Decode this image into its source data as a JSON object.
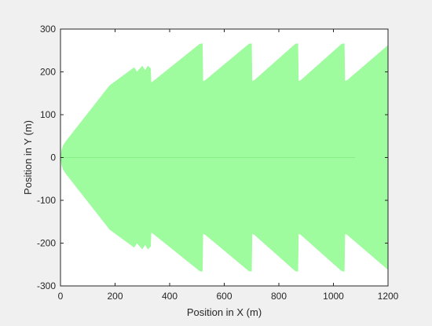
{
  "chart_data": {
    "type": "area",
    "title": "",
    "xlabel": "Position in X (m)",
    "ylabel": "Position in Y (m)",
    "xlim": [
      0,
      1200
    ],
    "ylim": [
      -300,
      300
    ],
    "xticks": [
      0,
      200,
      400,
      600,
      800,
      1000,
      1200
    ],
    "yticks": [
      -300,
      -200,
      -100,
      0,
      100,
      200,
      300
    ],
    "xtick_labels": [
      "0",
      "200",
      "400",
      "600",
      "800",
      "1000",
      "1200"
    ],
    "ytick_labels": [
      "-300",
      "-200",
      "-100",
      "0",
      "100",
      "200",
      "300"
    ],
    "grid": false,
    "legend": "none",
    "fill_color": "#9efb9e",
    "center_line_color": "#88ee88",
    "series": [
      {
        "x": [
          0,
          5,
          10,
          20,
          180,
          270,
          280,
          300,
          310,
          320,
          330,
          332,
          340,
          510,
          520,
          522,
          530,
          690,
          700,
          702,
          710,
          860,
          870,
          872,
          880,
          1030,
          1040,
          1042,
          1050,
          1200
        ],
        "y": [
          0,
          18,
          28,
          38,
          168,
          210,
          200,
          214,
          203,
          214,
          208,
          175,
          178,
          265,
          266,
          178,
          180,
          265,
          266,
          178,
          180,
          265,
          266,
          178,
          180,
          265,
          266,
          178,
          180,
          262
        ]
      },
      {
        "x": [
          0,
          5,
          10,
          20,
          180,
          270,
          280,
          300,
          310,
          320,
          330,
          332,
          340,
          510,
          520,
          522,
          530,
          690,
          700,
          702,
          710,
          860,
          870,
          872,
          880,
          1030,
          1040,
          1042,
          1050,
          1200
        ],
        "y": [
          0,
          -18,
          -28,
          -38,
          -168,
          -210,
          -200,
          -214,
          -203,
          -214,
          -208,
          -175,
          -178,
          -265,
          -266,
          -178,
          -180,
          -265,
          -266,
          -178,
          -180,
          -265,
          -266,
          -178,
          -180,
          -265,
          -266,
          -178,
          -180,
          -262
        ]
      }
    ],
    "center_line": {
      "x": [
        0,
        1080
      ],
      "y": [
        0,
        0
      ]
    }
  }
}
